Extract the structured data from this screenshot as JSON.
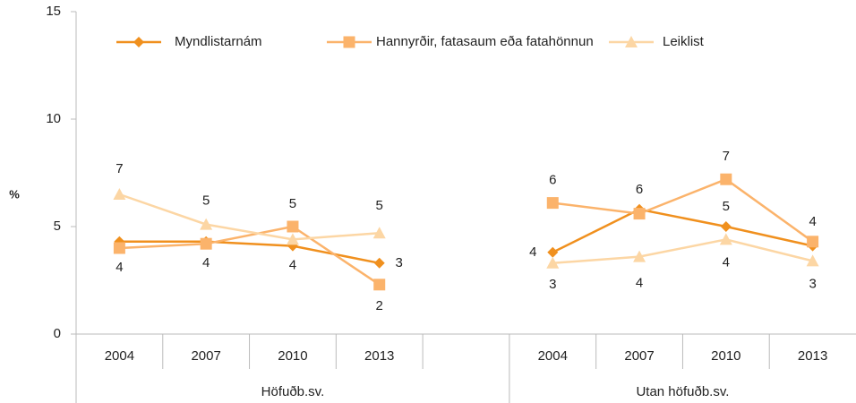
{
  "chart_data": {
    "type": "line",
    "y_label": "%",
    "categories": [
      "2004",
      "2007",
      "2010",
      "2013",
      null,
      "2004",
      "2007",
      "2010",
      "2013"
    ],
    "groups": [
      "Höfuðb.sv.",
      "Utan höfuðb.sv."
    ],
    "series": [
      {
        "name": "Myndlistarnám",
        "color": "#f0901e",
        "marker": "diamond",
        "values": [
          4.3,
          4.3,
          4.1,
          3.3,
          null,
          3.8,
          5.8,
          5.0,
          4.1
        ],
        "value_labels": [
          null,
          null,
          "4",
          "3",
          null,
          "4",
          "6",
          "5",
          null
        ]
      },
      {
        "name": "Hannyrðir, fatasaum eða fatahönnun",
        "color": "#fbb36b",
        "marker": "square",
        "values": [
          4.0,
          4.2,
          5.0,
          2.3,
          null,
          6.1,
          5.6,
          7.2,
          4.3
        ],
        "value_labels": [
          "4",
          "4",
          "5",
          "2",
          null,
          "6",
          null,
          "7",
          "4"
        ]
      },
      {
        "name": "Leiklist",
        "color": "#fcd6a4",
        "marker": "triangle",
        "values": [
          6.5,
          5.1,
          4.4,
          4.7,
          null,
          3.3,
          3.6,
          4.4,
          3.4
        ],
        "value_labels": [
          "7",
          "5",
          null,
          "5",
          null,
          "3",
          "4",
          "4",
          "3"
        ]
      }
    ],
    "ylim": [
      0,
      15
    ],
    "yticks": [
      0,
      5,
      10,
      15
    ],
    "legend": "top"
  }
}
